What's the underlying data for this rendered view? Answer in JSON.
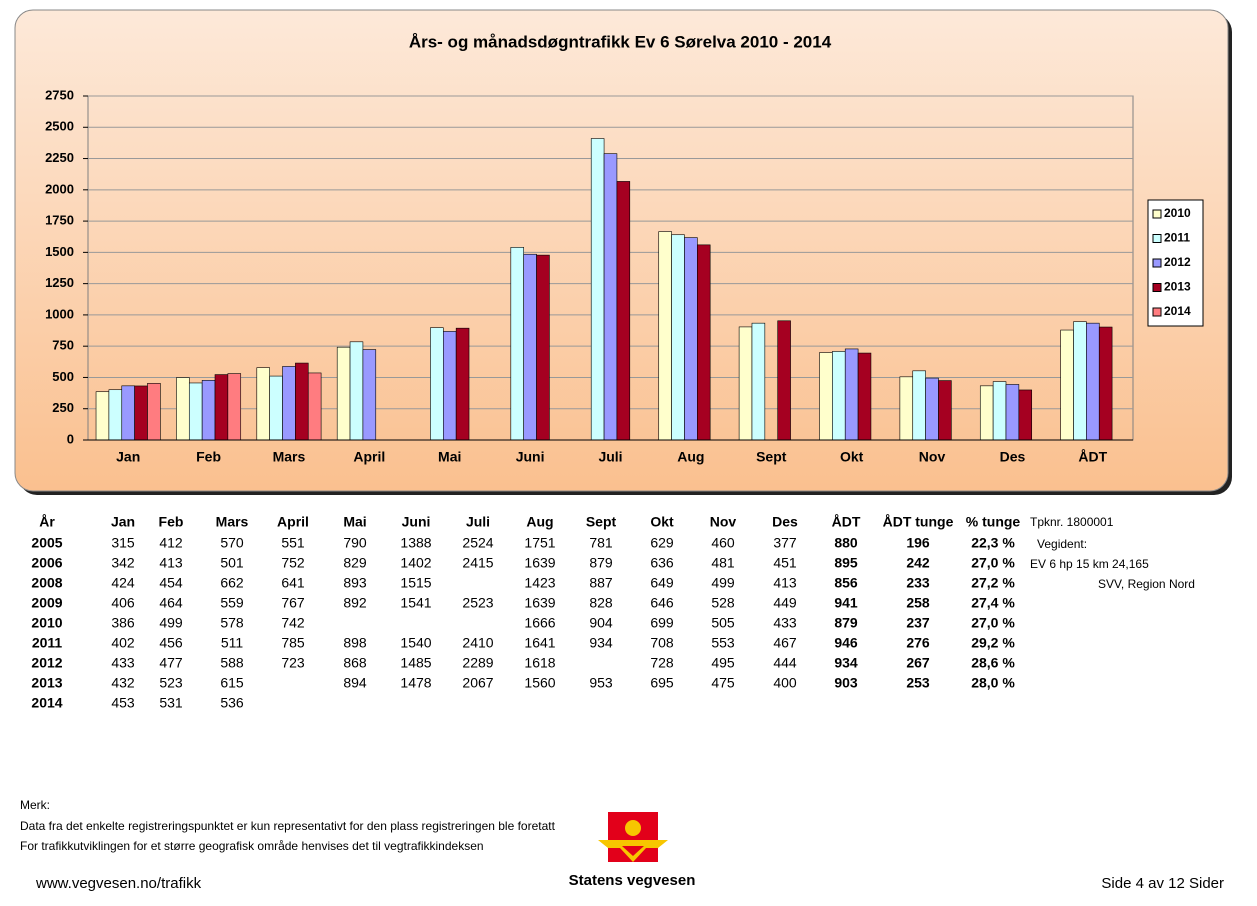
{
  "chart_data": {
    "type": "bar",
    "title": "Års- og månadsdøgntrafikk Ev 6 Sørelva 2010 - 2014",
    "categories": [
      "Jan",
      "Feb",
      "Mars",
      "April",
      "Mai",
      "Juni",
      "Juli",
      "Aug",
      "Sept",
      "Okt",
      "Nov",
      "Des",
      "ÅDT"
    ],
    "series": [
      {
        "name": "2010",
        "color": "#ffffcc",
        "values": [
          386,
          499,
          578,
          742,
          null,
          null,
          null,
          1666,
          904,
          699,
          505,
          433,
          879
        ]
      },
      {
        "name": "2011",
        "color": "#ccffff",
        "values": [
          402,
          456,
          511,
          785,
          898,
          1540,
          2410,
          1641,
          934,
          708,
          553,
          467,
          946
        ]
      },
      {
        "name": "2012",
        "color": "#9999ff",
        "values": [
          433,
          477,
          588,
          723,
          868,
          1485,
          2289,
          1618,
          null,
          728,
          495,
          444,
          934
        ]
      },
      {
        "name": "2013",
        "color": "#a50021",
        "values": [
          432,
          523,
          615,
          null,
          894,
          1478,
          2067,
          1560,
          953,
          695,
          475,
          400,
          903
        ]
      },
      {
        "name": "2014",
        "color": "#ff7c80",
        "values": [
          453,
          531,
          536,
          null,
          null,
          null,
          null,
          null,
          null,
          null,
          null,
          null,
          null
        ]
      }
    ],
    "ylim": [
      0,
      2750
    ],
    "yticks": [
      0,
      250,
      500,
      750,
      1000,
      1250,
      1500,
      1750,
      2000,
      2250,
      2500,
      2750
    ],
    "grid": true,
    "legend": "right"
  },
  "table": {
    "header": [
      "År",
      "Jan",
      "Feb",
      "Mars",
      "April",
      "Mai",
      "Juni",
      "Juli",
      "Aug",
      "Sept",
      "Okt",
      "Nov",
      "Des",
      "ÅDT",
      "ÅDT tunge",
      "% tunge"
    ],
    "rows": [
      [
        2005,
        315,
        412,
        570,
        551,
        790,
        1388,
        2524,
        1751,
        781,
        629,
        460,
        377,
        880,
        196,
        "22,3 %"
      ],
      [
        2006,
        342,
        413,
        501,
        752,
        829,
        1402,
        2415,
        1639,
        879,
        636,
        481,
        451,
        895,
        242,
        "27,0 %"
      ],
      [
        2008,
        424,
        454,
        662,
        641,
        893,
        1515,
        null,
        1423,
        887,
        649,
        499,
        413,
        856,
        233,
        "27,2 %"
      ],
      [
        2009,
        406,
        464,
        559,
        767,
        892,
        1541,
        2523,
        1639,
        828,
        646,
        528,
        449,
        941,
        258,
        "27,4 %"
      ],
      [
        2010,
        386,
        499,
        578,
        742,
        null,
        null,
        null,
        1666,
        904,
        699,
        505,
        433,
        879,
        237,
        "27,0 %"
      ],
      [
        2011,
        402,
        456,
        511,
        785,
        898,
        1540,
        2410,
        1641,
        934,
        708,
        553,
        467,
        946,
        276,
        "29,2 %"
      ],
      [
        2012,
        433,
        477,
        588,
        723,
        868,
        1485,
        2289,
        1618,
        null,
        728,
        495,
        444,
        934,
        267,
        "28,6 %"
      ],
      [
        2013,
        432,
        523,
        615,
        null,
        894,
        1478,
        2067,
        1560,
        953,
        695,
        475,
        400,
        903,
        253,
        "28,0 %"
      ],
      [
        2014,
        453,
        531,
        536,
        null,
        null,
        null,
        null,
        null,
        null,
        null,
        null,
        null,
        null,
        null,
        null
      ]
    ]
  },
  "station": {
    "number": "Tpknr. 1800001",
    "vegident_label": "Vegident:",
    "vegident": "EV 6 hp 15 km 24,165",
    "region": "SVV, Region Nord"
  },
  "notes": {
    "heading": "Merk:",
    "lines": [
      "Data fra det enkelte registreringspunktet er kun representativt for den plass registreringen ble foretatt",
      "For trafikkutviklingen for et større geografisk område henvises det til vegtrafikkindeksen"
    ]
  },
  "footer": {
    "url": "www.vegvesen.no/trafikk",
    "logo_text": "Statens vegvesen",
    "page": "Side 4 av 12 Sider"
  }
}
